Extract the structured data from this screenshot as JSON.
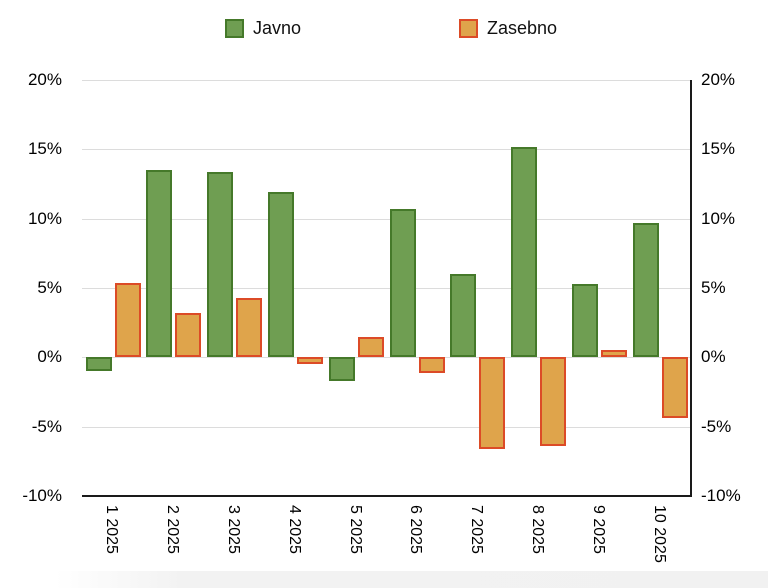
{
  "chart_data": {
    "type": "bar",
    "categories": [
      "1 2025",
      "2 2025",
      "3 2025",
      "4 2025",
      "5 2025",
      "6 2025",
      "7 2025",
      "8 2025",
      "9 2025",
      "10 2025"
    ],
    "series": [
      {
        "name": "Javno",
        "fill": "#6f9e52",
        "stroke": "#45792a",
        "values": [
          -1.0,
          13.5,
          13.4,
          11.9,
          -1.7,
          10.7,
          6.0,
          15.2,
          5.3,
          9.7
        ]
      },
      {
        "name": "Zasebno",
        "fill": "#dfa44b",
        "stroke": "#dc4b27",
        "values": [
          5.4,
          3.2,
          4.3,
          -0.5,
          1.5,
          -1.1,
          -6.6,
          -6.4,
          0.5,
          -4.4
        ]
      }
    ],
    "title": "",
    "xlabel": "",
    "ylabel": "",
    "ylim": [
      -10,
      20
    ],
    "yticks": [
      20,
      15,
      10,
      5,
      0,
      -5,
      -10
    ],
    "ytick_labels": [
      "20%",
      "15%",
      "10%",
      "5%",
      "0%",
      "-5%",
      "-10%"
    ],
    "grid": true,
    "legend_position": "top",
    "y_axis_sides": "both"
  },
  "colors": {
    "gridline": "#dcdcdc",
    "axis": "#1a1a1a",
    "background": "#ffffff"
  }
}
